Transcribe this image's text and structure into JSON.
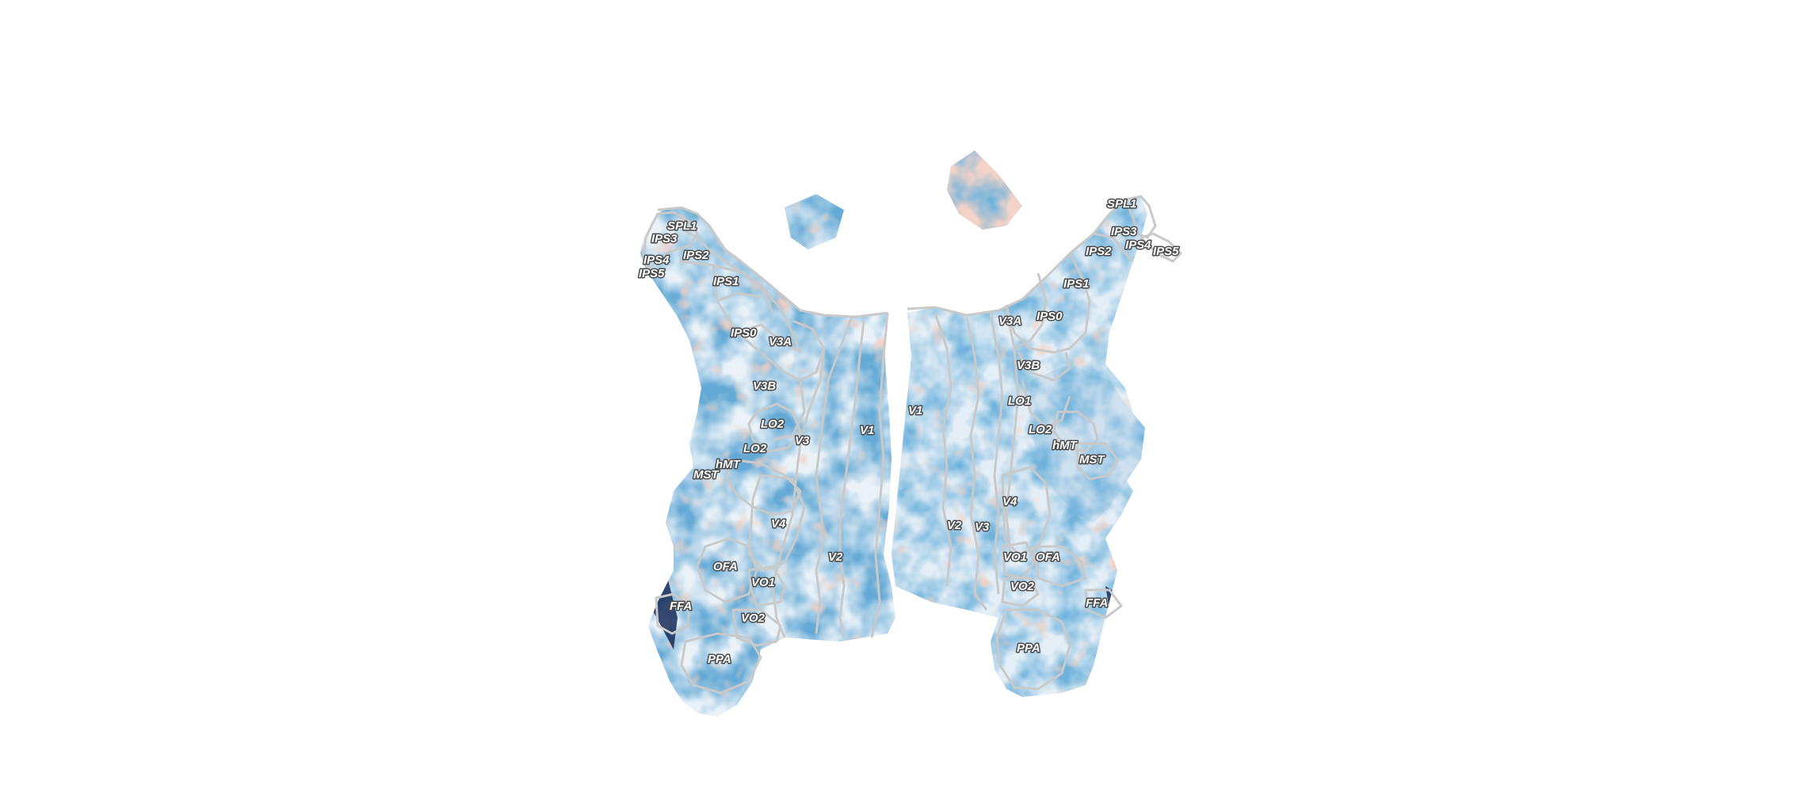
{
  "figure": {
    "colormap": {
      "negative": "#2166ac",
      "mid": "#f7f7f7",
      "positive": "#d6604d",
      "extreme_negative": "#0b1f4f",
      "extreme_positive": "#8b0000"
    },
    "outline_color": "#c9c9c9",
    "hemispheres": [
      {
        "id": "left",
        "labels": [
          "SPL1",
          "IPS3",
          "IPS2",
          "IPS4",
          "IPS5",
          "IPS1",
          "IPS0",
          "V3A",
          "V3B",
          "LO2",
          "V3",
          "V1",
          "LO2",
          "hMT",
          "MST",
          "V4",
          "OFA",
          "V2",
          "VO1",
          "FFA",
          "VO2",
          "PPA"
        ]
      },
      {
        "id": "right",
        "labels": [
          "SPL1",
          "IPS3",
          "IPS4",
          "IPS5",
          "IPS2",
          "IPS1",
          "V3A",
          "IPS0",
          "V3B",
          "V1",
          "LO1",
          "LO2",
          "hMT",
          "MST",
          "V4",
          "V2",
          "V3",
          "VO1",
          "OFA",
          "VO2",
          "FFA",
          "PPA"
        ]
      }
    ]
  }
}
